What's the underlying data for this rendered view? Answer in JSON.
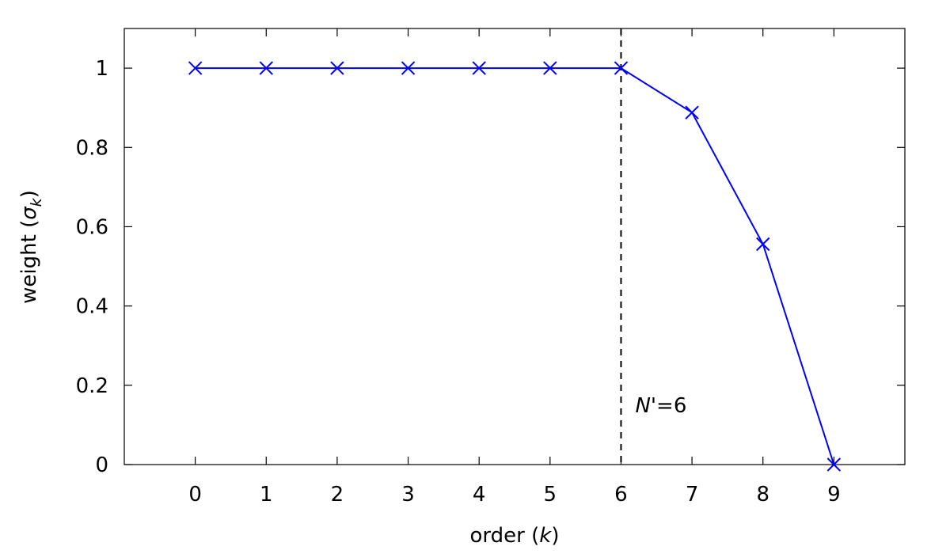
{
  "chart_data": {
    "type": "line",
    "title": "",
    "xlabel": "order (k)",
    "xlabel_parts": {
      "prefix": "order (",
      "var": "k",
      "suffix": ")"
    },
    "ylabel": "weight (σk)",
    "ylabel_parts": {
      "prefix": "weight (",
      "var": "σ",
      "sub": "k",
      "suffix": ")"
    },
    "xlim": [
      -1,
      10
    ],
    "ylim": [
      0,
      1.1
    ],
    "xticks": [
      0,
      1,
      2,
      3,
      4,
      5,
      6,
      7,
      8,
      9
    ],
    "yticks": [
      {
        "value": 0,
        "label": "0"
      },
      {
        "value": 0.2,
        "label": "0.2"
      },
      {
        "value": 0.4,
        "label": "0.4"
      },
      {
        "value": 0.6,
        "label": "0.6"
      },
      {
        "value": 0.8,
        "label": "0.8"
      },
      {
        "value": 1,
        "label": "1"
      }
    ],
    "grid": false,
    "series": [
      {
        "color": "#0000ff",
        "marker": "x",
        "x": [
          0,
          1,
          2,
          3,
          4,
          5,
          6,
          7,
          8,
          9
        ],
        "y": [
          1,
          1,
          1,
          1,
          1,
          1,
          1,
          0.888,
          0.556,
          0.0
        ]
      }
    ],
    "vline": {
      "x": 6,
      "style": "dashed",
      "color": "#000000",
      "annotation": {
        "var": "N",
        "rest": "'=6"
      }
    }
  }
}
